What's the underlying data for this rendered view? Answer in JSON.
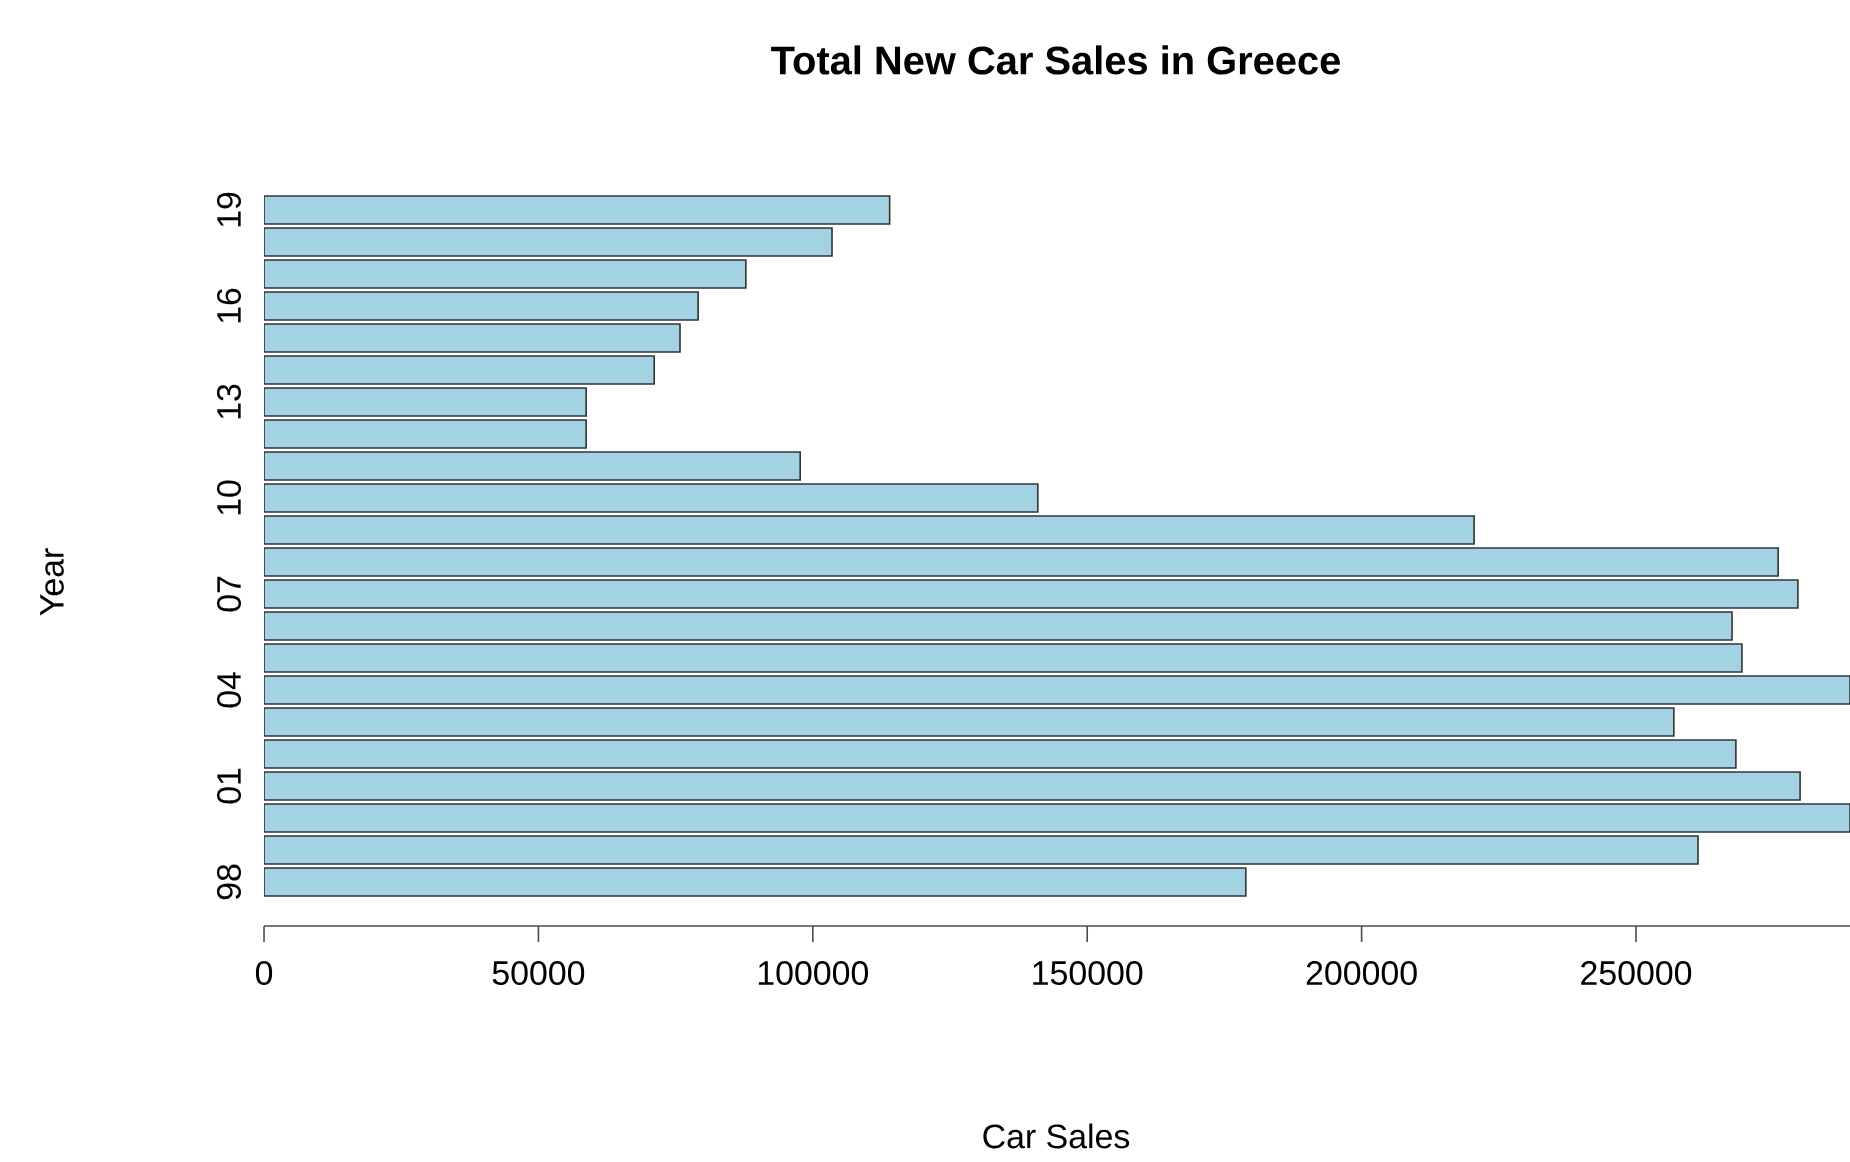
{
  "chart_data": {
    "type": "bar",
    "orientation": "horizontal",
    "title": "Total New Car Sales in Greece",
    "xlabel": "Car Sales",
    "ylabel": "Year",
    "categories": [
      "19",
      null,
      null,
      "16",
      null,
      null,
      "13",
      null,
      null,
      "10",
      null,
      null,
      "07",
      null,
      null,
      "04",
      null,
      null,
      "01",
      null,
      null,
      "98"
    ],
    "values": [
      114000,
      103500,
      87800,
      79100,
      75800,
      71100,
      58700,
      58700,
      97700,
      141000,
      220500,
      275900,
      279500,
      267500,
      269300,
      289000,
      256900,
      268200,
      279900,
      289000,
      261300,
      178900
    ],
    "color": "#a3d2e3",
    "xlim": [
      0,
      289000
    ],
    "xticks": [
      0,
      50000,
      100000,
      150000,
      200000,
      250000
    ]
  }
}
